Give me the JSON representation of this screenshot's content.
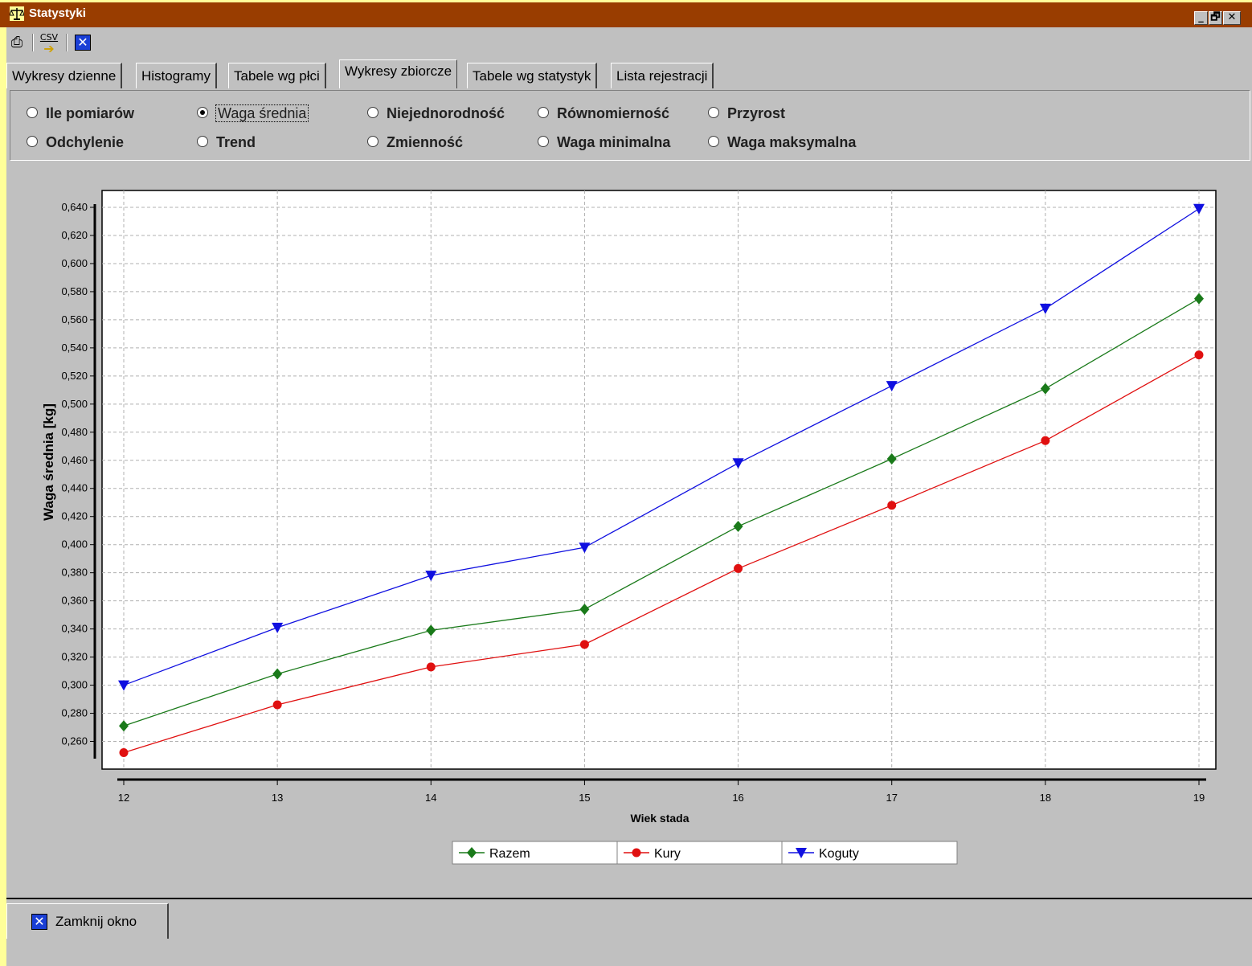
{
  "window": {
    "title": "Statystyki",
    "min_label": "_",
    "max_label": "🗗",
    "close_label": "✕"
  },
  "toolbar": {
    "print_icon": "printer-icon",
    "csv_label": "CSV",
    "close_icon": "close-icon"
  },
  "tabs": [
    {
      "label": "Wykresy dzienne",
      "active": false
    },
    {
      "label": "Histogramy",
      "active": false
    },
    {
      "label": "Tabele wg płci",
      "active": false
    },
    {
      "label": "Wykresy zbiorcze",
      "active": true
    },
    {
      "label": "Tabele wg statystyk",
      "active": false
    },
    {
      "label": "Lista rejestracji",
      "active": false
    }
  ],
  "options": {
    "row1": [
      "Ile pomiarów",
      "Waga średnia",
      "Niejednorodność",
      "Równomierność",
      "Przyrost"
    ],
    "row2": [
      "Odchylenie",
      "Trend",
      "Zmienność",
      "Waga minimalna",
      "Waga maksymalna"
    ],
    "selected": "Waga średnia"
  },
  "chart_data": {
    "type": "line",
    "xlabel": "Wiek stada",
    "ylabel": "Waga średnia [kg]",
    "x": [
      12,
      13,
      14,
      15,
      16,
      17,
      18,
      19
    ],
    "x_ticks": [
      "12",
      "13",
      "14",
      "15",
      "16",
      "17",
      "18",
      "19"
    ],
    "ylim": [
      0.25,
      0.64
    ],
    "y_ticks": [
      "0,260",
      "0,280",
      "0,300",
      "0,320",
      "0,340",
      "0,360",
      "0,380",
      "0,400",
      "0,420",
      "0,440",
      "0,460",
      "0,480",
      "0,500",
      "0,520",
      "0,540",
      "0,560",
      "0,580",
      "0,600",
      "0,620",
      "0,640"
    ],
    "grid": true,
    "legend_position": "bottom",
    "series": [
      {
        "name": "Razem",
        "color": "#1a7a1a",
        "marker": "diamond",
        "values": [
          0.271,
          0.308,
          0.339,
          0.354,
          0.413,
          0.461,
          0.511,
          0.575
        ]
      },
      {
        "name": "Kury",
        "color": "#e01010",
        "marker": "circle",
        "values": [
          0.252,
          0.286,
          0.313,
          0.329,
          0.383,
          0.428,
          0.474,
          0.535
        ]
      },
      {
        "name": "Koguty",
        "color": "#1010e0",
        "marker": "triangle-down",
        "values": [
          0.3,
          0.341,
          0.378,
          0.398,
          0.458,
          0.513,
          0.568,
          0.639
        ]
      }
    ]
  },
  "footer": {
    "close_label": "Zamknij okno"
  }
}
